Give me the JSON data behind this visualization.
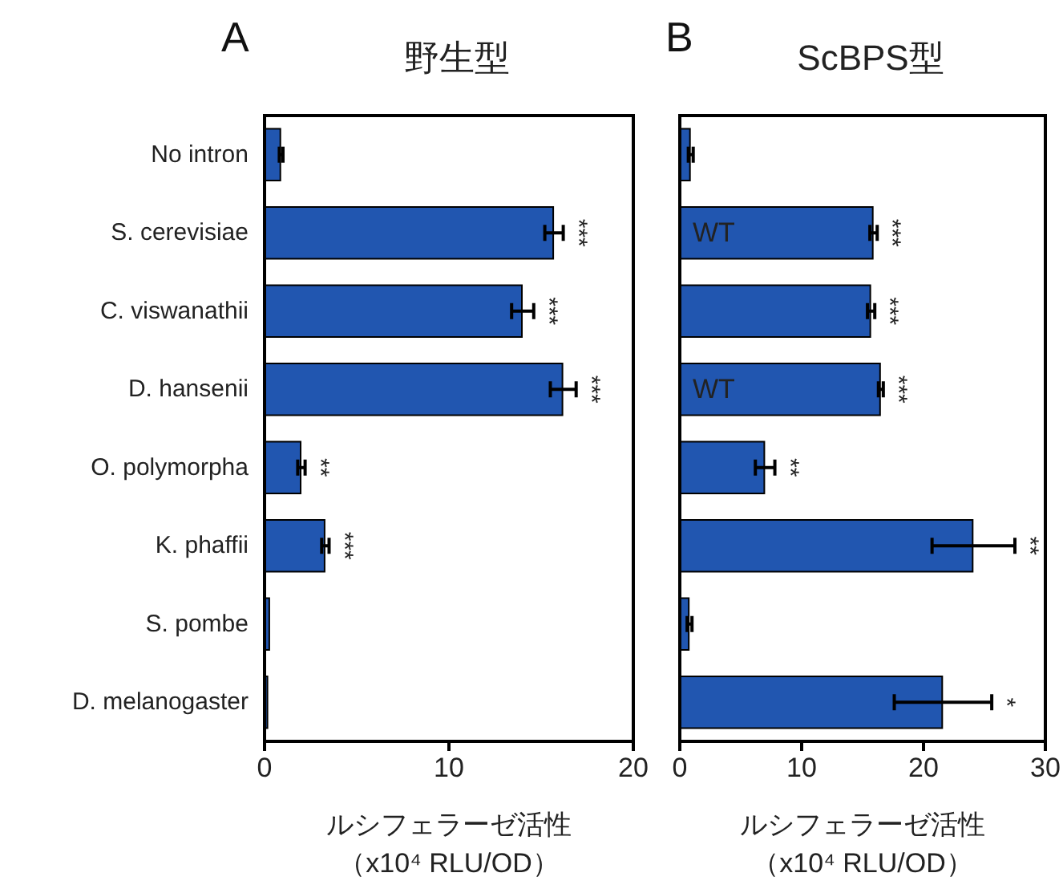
{
  "chart_data": [
    {
      "type": "bar",
      "orientation": "horizontal",
      "title": "野生型",
      "xlabel": "ルシフェラーゼ活性（x10⁴ RLU/OD）",
      "categories": [
        "No intron",
        "S. cerevisiae",
        "C. viswanathii",
        "D. hansenii",
        "O. polymorpha",
        "K. phaffii",
        "S. pombe",
        "D. melanogaster"
      ],
      "series": [
        {
          "color": "#2156b0",
          "values": [
            0.9,
            15.7,
            14.0,
            16.2,
            2.0,
            3.3,
            0.3,
            0.2
          ],
          "errors": [
            0.1,
            0.5,
            0.6,
            0.7,
            0.2,
            0.2,
            null,
            null
          ]
        }
      ],
      "xlim": [
        0,
        20
      ],
      "xticks": [
        0,
        10,
        20
      ],
      "grid": false,
      "annotations": [
        "A",
        {
          "text": "***",
          "x": 15.7,
          "y": "S. cerevisiae"
        },
        {
          "text": "***",
          "x": 14.0,
          "y": "C. viswanathii"
        },
        {
          "text": "***",
          "x": 16.2,
          "y": "D. hansenii"
        },
        {
          "text": "**",
          "x": 2.0,
          "y": "O. polymorpha"
        },
        {
          "text": "***",
          "x": 3.3,
          "y": "K. phaffii"
        }
      ]
    },
    {
      "type": "bar",
      "orientation": "horizontal",
      "title": "ScBPS型",
      "xlabel": "ルシフェラーゼ活性（x10⁴ RLU/OD）",
      "categories": [
        "No intron",
        "S. cerevisiae",
        "C. viswanathii",
        "D. hansenii",
        "O. polymorpha",
        "K. phaffii",
        "S. pombe",
        "D. melanogaster"
      ],
      "tick_labels": "x",
      "series": [
        {
          "color": "#2156b0",
          "values": [
            0.9,
            15.9,
            15.7,
            16.5,
            7.0,
            24.1,
            0.8,
            21.6
          ],
          "errors": [
            0.2,
            0.3,
            0.3,
            0.2,
            0.8,
            3.4,
            0.2,
            4.0
          ]
        }
      ],
      "xlim": [
        0,
        30
      ],
      "xticks": [
        0,
        10,
        20,
        30
      ],
      "grid": false,
      "annotations": [
        "B",
        {
          "text": "WT",
          "x": 0,
          "y": "S. cerevisiae"
        },
        {
          "text": "WT",
          "x": 0,
          "y": "D. hansenii"
        },
        {
          "text": "***",
          "x": 15.9,
          "y": "S. cerevisiae"
        },
        {
          "text": "***",
          "x": 15.7,
          "y": "C. viswanathii"
        },
        {
          "text": "***",
          "x": 16.5,
          "y": "D. hansenii"
        },
        {
          "text": "**",
          "x": 7.0,
          "y": "O. polymorpha"
        },
        {
          "text": "**",
          "x": 24.1,
          "y": "K. phaffii"
        },
        {
          "text": "*",
          "x": 21.6,
          "y": "D. melanogaster"
        }
      ]
    }
  ]
}
